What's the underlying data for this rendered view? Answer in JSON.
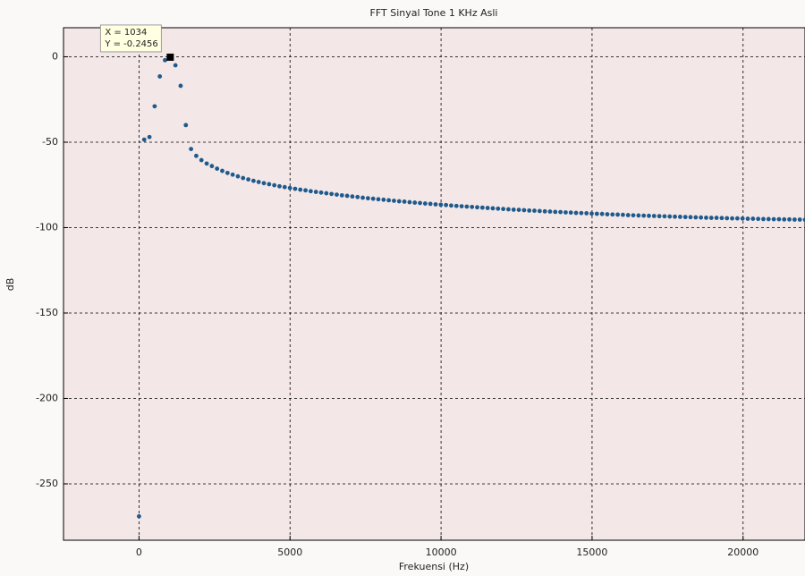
{
  "chart_data": {
    "type": "scatter",
    "title": "FFT Sinyal Tone 1 KHz Asli",
    "x_label": "Frekuensi (Hz)",
    "y_label": "dB",
    "xlim": [
      -2500,
      22050
    ],
    "ylim": [
      -283,
      17
    ],
    "xticks": [
      0,
      5000,
      10000,
      15000,
      20000
    ],
    "yticks": [
      -250,
      -200,
      -150,
      -100,
      -50,
      0
    ],
    "grid": true,
    "datatip": {
      "index": 6,
      "lines": [
        "X = 1034",
        "Y = -0.2456"
      ]
    },
    "series": [
      {
        "color": "#1f5a8c",
        "x": [
          0,
          172,
          345,
          517,
          689,
          861,
          1034,
          1206,
          1378,
          1550,
          1723,
          1895,
          2067,
          2240,
          2412,
          2584,
          2756,
          2929,
          3101,
          3273,
          3445,
          3618,
          3790,
          3962,
          4134,
          4307,
          4479,
          4651,
          4823,
          4996,
          5168,
          5340,
          5513,
          5685,
          5857,
          6029,
          6202,
          6374,
          6546,
          6718,
          6891,
          7063,
          7235,
          7408,
          7580,
          7752,
          7924,
          8097,
          8269,
          8441,
          8613,
          8786,
          8958,
          9130,
          9303,
          9475,
          9647,
          9819,
          9992,
          10164,
          10336,
          10508,
          10681,
          10853,
          11025,
          11197,
          11370,
          11542,
          11714,
          11886,
          12059,
          12231,
          12403,
          12576,
          12748,
          12920,
          13092,
          13265,
          13437,
          13609,
          13781,
          13954,
          14126,
          14298,
          14470,
          14643,
          14815,
          14987,
          15159,
          15332,
          15504,
          15676,
          15848,
          16021,
          16193,
          16365,
          16538,
          16710,
          16882,
          17054,
          17227,
          17399,
          17571,
          17743,
          17916,
          18088,
          18260,
          18432,
          18605,
          18777,
          18949,
          19121,
          19294,
          19466,
          19638,
          19810,
          19983,
          20155,
          20327,
          20500,
          20672,
          20844,
          21016,
          21189,
          21361,
          21533,
          21705,
          21878,
          22050
        ],
        "values": [
          -269,
          -48.5,
          -47,
          -29,
          -11.5,
          -2,
          -0.2456,
          -5,
          -17,
          -40,
          -54,
          -58,
          -60.5,
          -62.5,
          -64,
          -65.5,
          -66.8,
          -68,
          -69,
          -70,
          -71,
          -71.8,
          -72.6,
          -73.3,
          -74,
          -74.6,
          -75.2,
          -75.8,
          -76.3,
          -76.8,
          -77.3,
          -77.8,
          -78.2,
          -78.7,
          -79.1,
          -79.5,
          -79.9,
          -80.3,
          -80.7,
          -81.1,
          -81.4,
          -81.8,
          -82.1,
          -82.5,
          -82.8,
          -83.1,
          -83.4,
          -83.7,
          -84,
          -84.3,
          -84.6,
          -84.8,
          -85.1,
          -85.4,
          -85.6,
          -85.9,
          -86.1,
          -86.4,
          -86.6,
          -86.8,
          -87.1,
          -87.3,
          -87.5,
          -87.7,
          -87.9,
          -88.1,
          -88.3,
          -88.5,
          -88.7,
          -88.9,
          -89.1,
          -89.3,
          -89.5,
          -89.6,
          -89.8,
          -90,
          -90.1,
          -90.3,
          -90.5,
          -90.6,
          -90.8,
          -90.9,
          -91.1,
          -91.2,
          -91.4,
          -91.5,
          -91.6,
          -91.8,
          -91.9,
          -92,
          -92.2,
          -92.3,
          -92.4,
          -92.5,
          -92.7,
          -92.8,
          -92.9,
          -93,
          -93.1,
          -93.2,
          -93.3,
          -93.4,
          -93.5,
          -93.6,
          -93.7,
          -93.8,
          -93.9,
          -94,
          -94.1,
          -94.2,
          -94.3,
          -94.3,
          -94.4,
          -94.5,
          -94.6,
          -94.6,
          -94.7,
          -94.8,
          -94.8,
          -94.9,
          -95,
          -95,
          -95.1,
          -95.1,
          -95.2,
          -95.2,
          -95.3,
          -95.3,
          -95.4
        ]
      }
    ]
  }
}
